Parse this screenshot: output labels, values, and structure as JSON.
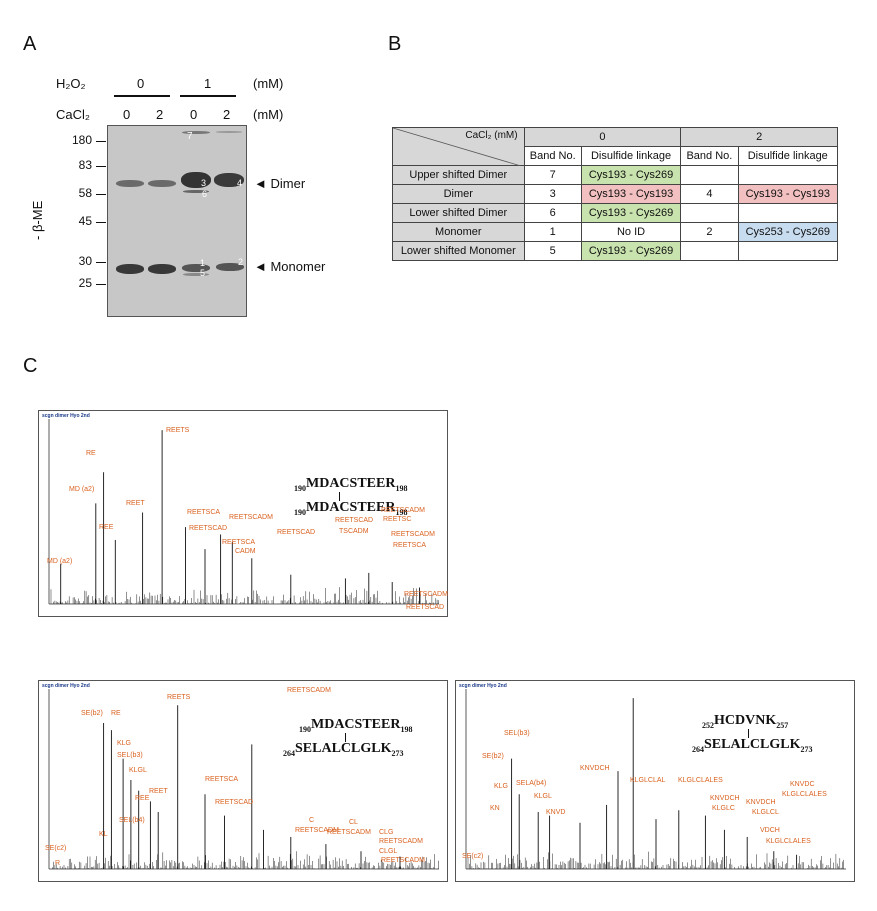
{
  "panels": {
    "a": "A",
    "b": "B",
    "c": "C"
  },
  "gel": {
    "h2o2_label": "H₂O₂",
    "cacl2_label": "CaCl₂",
    "unit": "(mM)",
    "h2o2_values": [
      "0",
      "1"
    ],
    "cacl2_values": [
      "0",
      "2",
      "0",
      "2"
    ],
    "side_label": "- β-ME",
    "markers": [
      "180",
      "83",
      "58",
      "45",
      "30",
      "25"
    ],
    "dimer_label": "◄ Dimer",
    "monomer_label": "◄ Monomer",
    "band_numbers": [
      "7",
      "3",
      "4",
      "6",
      "1",
      "2",
      "5"
    ]
  },
  "table": {
    "corner": "CaCl₂ (mM)",
    "group1": "0",
    "group2": "2",
    "col_band": "Band No.",
    "col_link": "Disulfide linkage",
    "rows": [
      {
        "name": "Upper shifted Dimer",
        "b1": "7",
        "l1": "Cys193 - Cys269",
        "b2": "",
        "l2": ""
      },
      {
        "name": "Dimer",
        "b1": "3",
        "l1": "Cys193 - Cys193",
        "b2": "4",
        "l2": "Cys193 - Cys193"
      },
      {
        "name": "Lower shifted Dimer",
        "b1": "6",
        "l1": "Cys193 - Cys269",
        "b2": "",
        "l2": ""
      },
      {
        "name": "Monomer",
        "b1": "1",
        "l1": "No ID",
        "b2": "2",
        "l2": "Cys253 - Cys269"
      },
      {
        "name": "Lower shifted Monomer",
        "b1": "5",
        "l1": "Cys193 - Cys269",
        "b2": "",
        "l2": ""
      }
    ]
  },
  "spectra": [
    {
      "header": "scgn dimer Hyo 2nd",
      "pep1": {
        "pre": "190",
        "seq": "MDACSTEER",
        "post": "198"
      },
      "pep2": {
        "pre": "190",
        "seq": "MDACSTEER",
        "post": "198"
      },
      "ions": [
        "REETS",
        "RE",
        "MD (a2)",
        "REET",
        "REE",
        "MD (a2)",
        "REETSCA",
        "REETSCAD",
        "REETSCADM",
        "REETSCA",
        "CADM",
        "REETSCAD",
        "REETSCAD",
        "TSCADM",
        "REETSCADM",
        "REETSC",
        "REETSCADM",
        "REETSCA",
        "REETSCADM",
        "REETSCAD"
      ]
    },
    {
      "header": "scgn dimer Hyo 2nd",
      "pep1": {
        "pre": "190",
        "seq": "MDACSTEER",
        "post": "198"
      },
      "pep2": {
        "pre": "264",
        "seq": "SELALCLGLK",
        "post": "273"
      },
      "ions": [
        "REETS",
        "SE(b2)",
        "RE",
        "KLG",
        "SEL(b3)",
        "KLGL",
        "REET",
        "REE",
        "SEL(b4)",
        "KL",
        "SE(c2)",
        "R",
        "REETSCA",
        "REETSCAD",
        "REETSCADM",
        "C",
        "REETSCADM",
        "CL",
        "REETSCADM",
        "CLG",
        "REETSCADM",
        "CLGL",
        "REETSCADM"
      ]
    },
    {
      "header": "scgn dimer Hyo 2nd",
      "pep1": {
        "pre": "252",
        "seq": "HCDVNK",
        "post": "257"
      },
      "pep2": {
        "pre": "264",
        "seq": "SELALCLGLK",
        "post": "273"
      },
      "ions": [
        "SEL(b3)",
        "SE(b2)",
        "KLG",
        "KN",
        "SELA(b4)",
        "KLGL",
        "KNVD",
        "KNVDCH",
        "KLGLCLAL",
        "KLGLCLALES",
        "KNVDCH",
        "KLGLC",
        "KNVDCH",
        "KLGLCL",
        "VDCH",
        "KLGLCLALES",
        "KNVDC",
        "KLGLCLALES",
        "SE(c2)"
      ]
    }
  ]
}
